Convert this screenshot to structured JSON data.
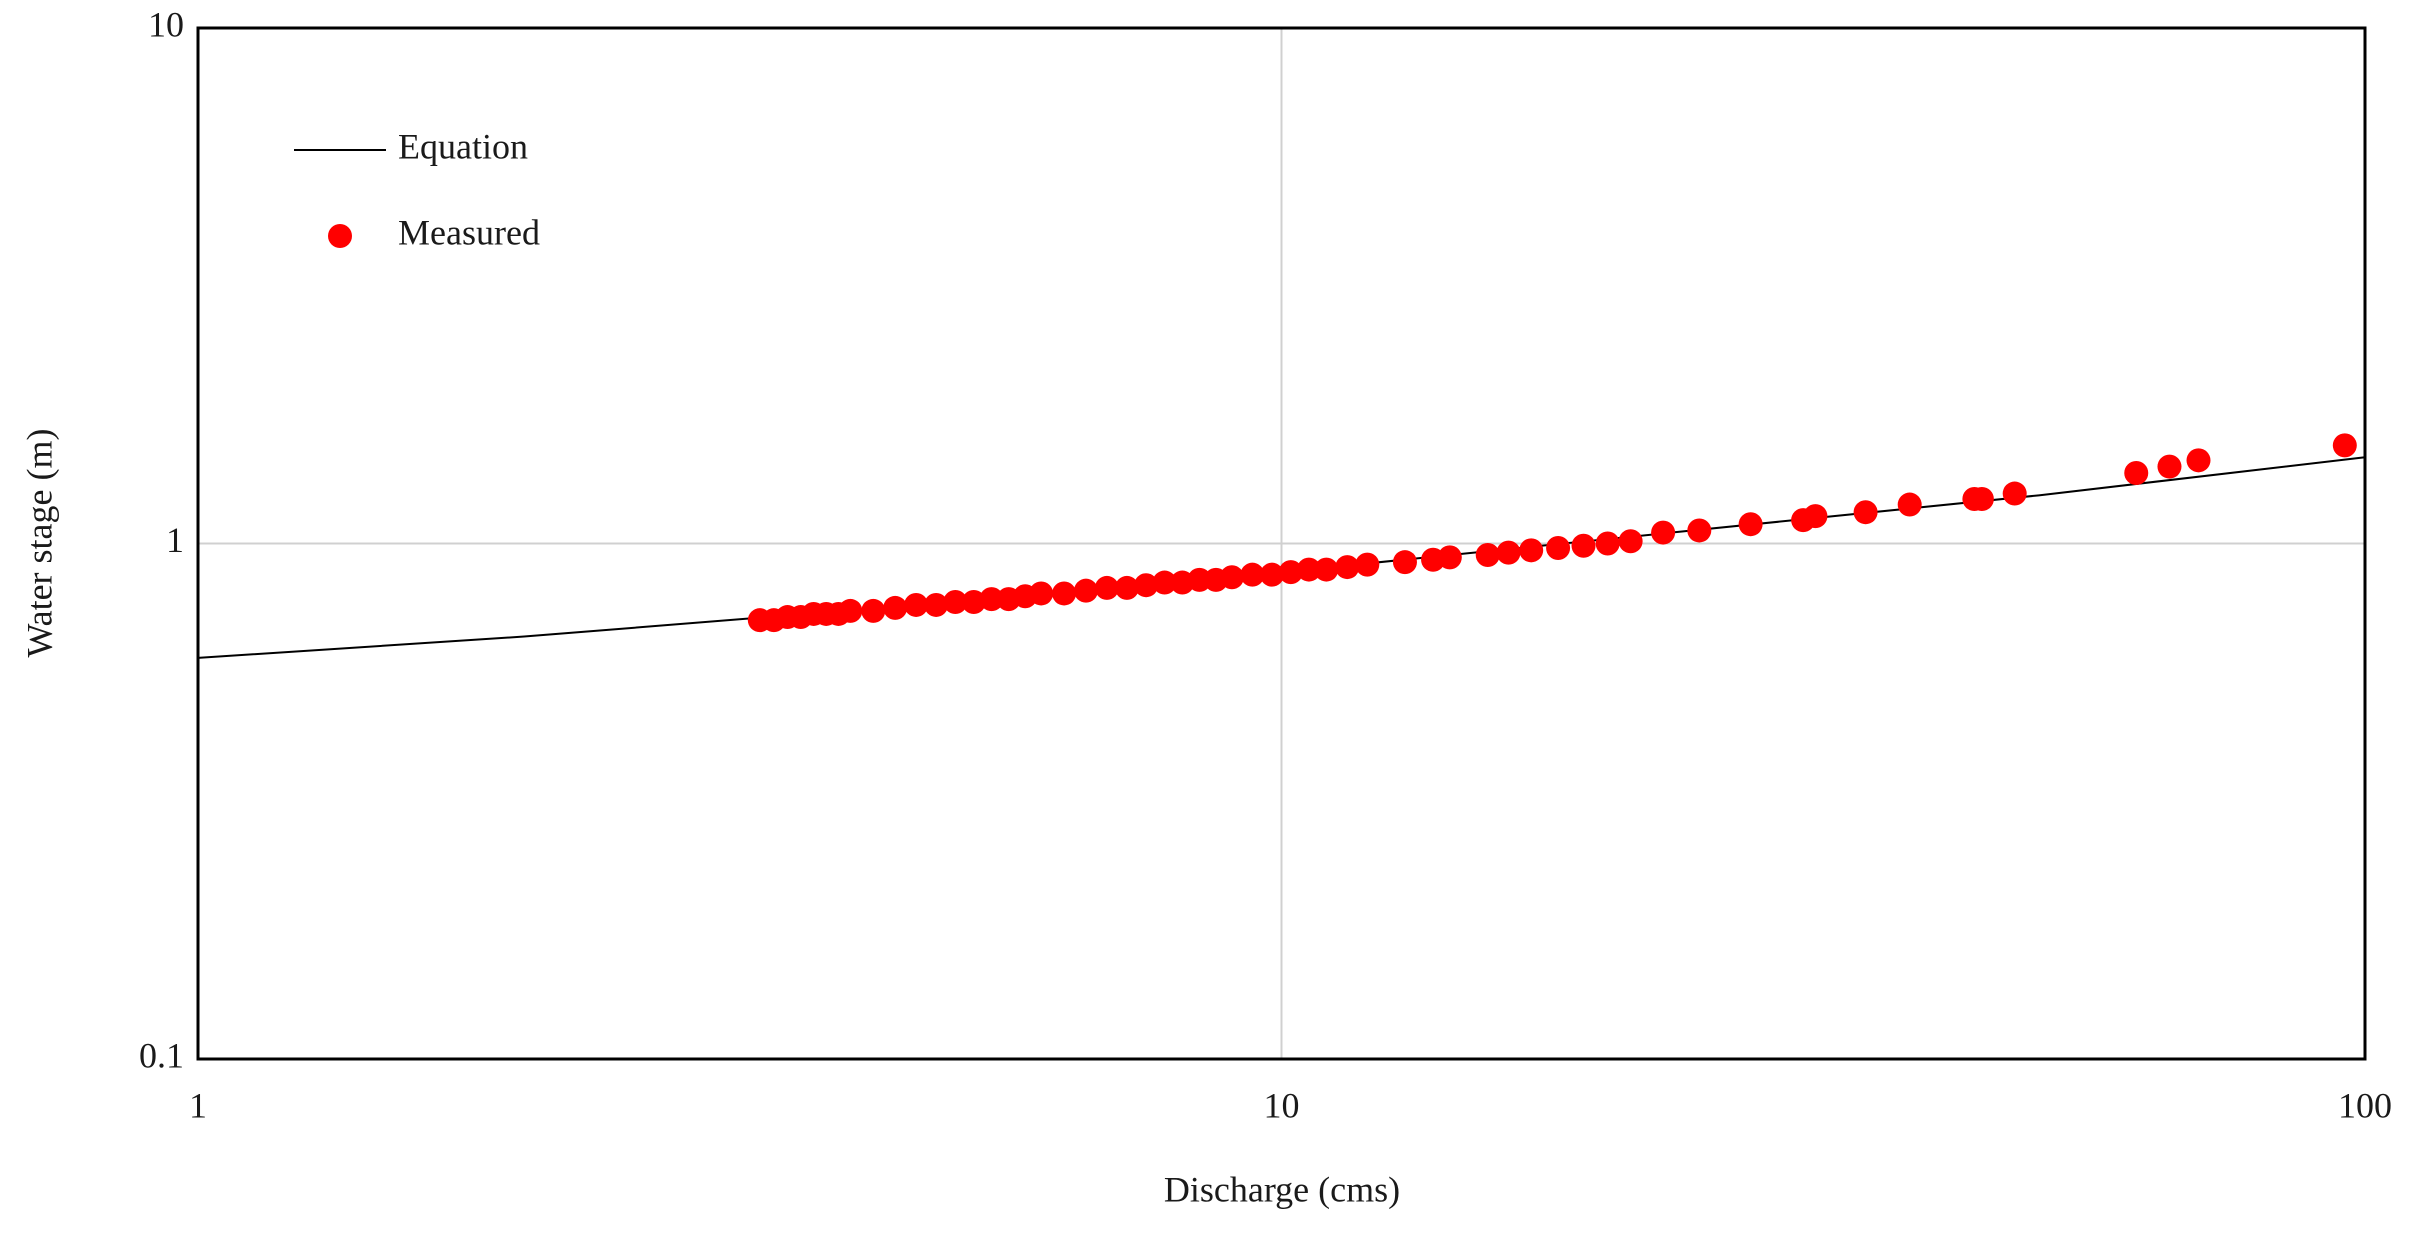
{
  "chart_data": {
    "type": "scatter",
    "xlabel": "Discharge (cms)",
    "ylabel": "Water stage (m)",
    "xscale": "log",
    "yscale": "log",
    "xlim": [
      1,
      100
    ],
    "ylim": [
      0.1,
      10
    ],
    "xticks": [
      1,
      10,
      100
    ],
    "yticks": [
      0.1,
      1,
      10
    ],
    "grid": true,
    "legend": "upper left",
    "series": [
      {
        "name": "Equation",
        "type": "line",
        "color": "#000000",
        "x": [
          1,
          2,
          5,
          10,
          20,
          50,
          100
        ],
        "values": [
          0.6,
          0.66,
          0.77,
          0.88,
          1.02,
          1.24,
          1.47
        ]
      },
      {
        "name": "Measured",
        "type": "scatter",
        "color": "#ff0000",
        "x": [
          3.3,
          3.4,
          3.5,
          3.6,
          3.7,
          3.8,
          3.9,
          4.0,
          4.2,
          4.4,
          4.6,
          4.8,
          5.0,
          5.2,
          5.4,
          5.6,
          5.8,
          6.0,
          6.3,
          6.6,
          6.9,
          7.2,
          7.5,
          7.8,
          8.1,
          8.4,
          8.7,
          9.0,
          9.4,
          9.8,
          10.2,
          10.6,
          11.0,
          11.5,
          12.0,
          13.0,
          13.8,
          14.3,
          15.5,
          16.2,
          17.0,
          18.0,
          19.0,
          20.0,
          21.0,
          22.5,
          24.3,
          27.1,
          30.3,
          31.1,
          34.6,
          38,
          43.6,
          44.3,
          47.5,
          61.5,
          66,
          70.2,
          95.8
        ],
        "values": [
          0.71,
          0.71,
          0.72,
          0.72,
          0.73,
          0.73,
          0.73,
          0.74,
          0.74,
          0.75,
          0.76,
          0.76,
          0.77,
          0.77,
          0.78,
          0.78,
          0.79,
          0.8,
          0.8,
          0.81,
          0.82,
          0.82,
          0.83,
          0.84,
          0.84,
          0.85,
          0.85,
          0.86,
          0.87,
          0.87,
          0.88,
          0.89,
          0.89,
          0.9,
          0.91,
          0.92,
          0.93,
          0.94,
          0.95,
          0.96,
          0.97,
          0.98,
          0.99,
          1.0,
          1.01,
          1.05,
          1.06,
          1.09,
          1.11,
          1.13,
          1.15,
          1.19,
          1.22,
          1.22,
          1.25,
          1.37,
          1.41,
          1.45,
          1.55
        ]
      }
    ]
  }
}
